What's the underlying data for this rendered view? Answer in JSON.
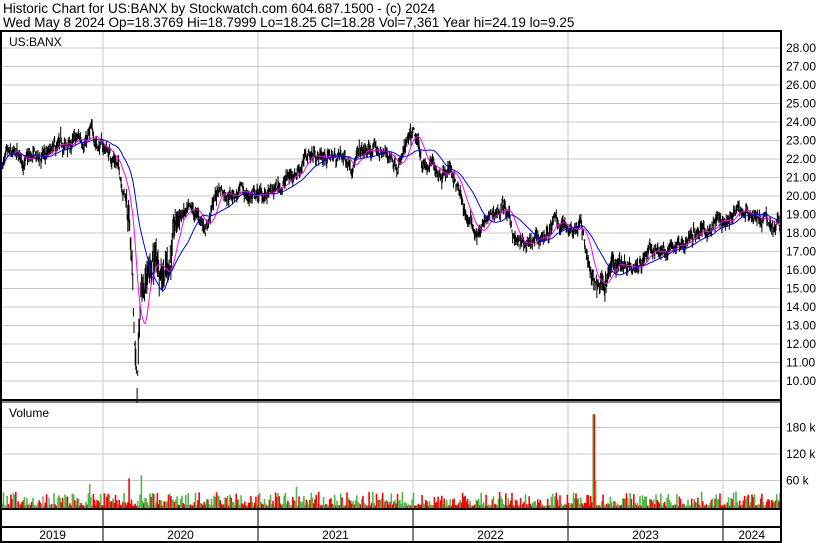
{
  "header": {
    "title": "Historic Chart for US:BANX by Stockwatch.com 604.687.1500 - (c) 2024",
    "info": "Wed May  8 2024   Op=18.3769   Hi=18.7999   Lo=18.25   Cl=18.28   Vol=7,361   Year hi=24.19   lo=9.25"
  },
  "chart_data": [
    {
      "type": "line",
      "title": "US:BANX",
      "subtype": "ohlc-bars-with-moving-averages",
      "ylim": [
        9,
        28.5
      ],
      "yticks": [
        "28.00",
        "27.00",
        "26.00",
        "25.00",
        "24.00",
        "23.00",
        "22.00",
        "21.00",
        "20.00",
        "19.00",
        "18.00",
        "17.00",
        "16.00",
        "15.00",
        "14.00",
        "13.00",
        "12.00",
        "11.00",
        "10.00"
      ],
      "x_tick_labels": [
        "2019",
        "2020",
        "2021",
        "2022",
        "2023",
        "2024"
      ],
      "grid": true,
      "colors": {
        "bars": "#000000",
        "ma_short": "#ff00ff",
        "ma_long": "#0000ff"
      },
      "approx_closes": [
        [
          "2019-05",
          21.8
        ],
        [
          "2019-08",
          21.9
        ],
        [
          "2019-10",
          22.5
        ],
        [
          "2019-12",
          23.3
        ],
        [
          "2020-02",
          22.0
        ],
        [
          "2020-03",
          19.5
        ],
        [
          "2020-03-20",
          9.3
        ],
        [
          "2020-04",
          15.5
        ],
        [
          "2020-05",
          16.5
        ],
        [
          "2020-06",
          16.5
        ],
        [
          "2020-07",
          19.0
        ],
        [
          "2020-09",
          18.5
        ],
        [
          "2020-10",
          20.5
        ],
        [
          "2020-12",
          20.0
        ],
        [
          "2021-02",
          20.0
        ],
        [
          "2021-04",
          21.5
        ],
        [
          "2021-05",
          22.3
        ],
        [
          "2021-08",
          22.0
        ],
        [
          "2021-10",
          22.4
        ],
        [
          "2021-12",
          22.0
        ],
        [
          "2022-01",
          23.0
        ],
        [
          "2022-02",
          21.5
        ],
        [
          "2022-04",
          21.5
        ],
        [
          "2022-05",
          19.0
        ],
        [
          "2022-06",
          18.0
        ],
        [
          "2022-08",
          19.5
        ],
        [
          "2022-09",
          17.5
        ],
        [
          "2022-10",
          17.0
        ],
        [
          "2022-12",
          18.5
        ],
        [
          "2023-02",
          18.5
        ],
        [
          "2023-03",
          15.0
        ],
        [
          "2023-05",
          16.5
        ],
        [
          "2023-07",
          16.8
        ],
        [
          "2023-09",
          17.2
        ],
        [
          "2023-10",
          17.5
        ],
        [
          "2023-12",
          18.5
        ],
        [
          "2024-02",
          19.0
        ],
        [
          "2024-03",
          19.2
        ],
        [
          "2024-05",
          18.3
        ]
      ]
    },
    {
      "type": "bar",
      "title": "Volume",
      "ylim": [
        0,
        230000
      ],
      "yticks": [
        "180 k",
        "120 k",
        "60 k"
      ],
      "colors": {
        "up": "#4cb848",
        "down": "#ff0000",
        "flat": "#a0a0a0"
      },
      "spikes": [
        [
          "2019-12",
          52000
        ],
        [
          "2020-03",
          65000
        ],
        [
          "2020-04",
          72000
        ],
        [
          "2021-04",
          46000
        ],
        [
          "2023-03",
          210000
        ],
        [
          "2023-03-05",
          62000
        ]
      ]
    }
  ]
}
